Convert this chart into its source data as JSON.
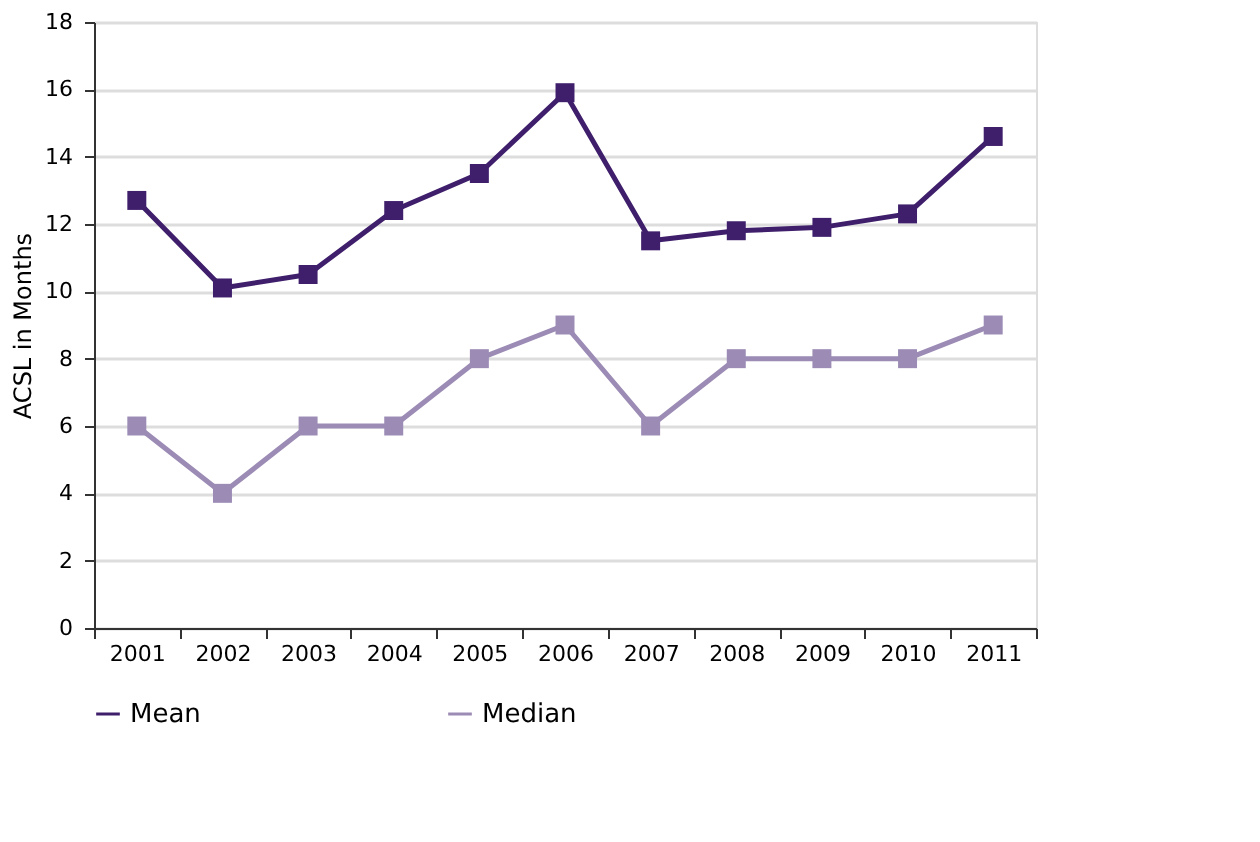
{
  "chart_data": {
    "type": "line",
    "ylabel": "ACSL in Months",
    "categories": [
      "2001",
      "2002",
      "2003",
      "2004",
      "2005",
      "2006",
      "2007",
      "2008",
      "2009",
      "2010",
      "2011"
    ],
    "series": [
      {
        "name": "Mean",
        "color": "#3f1f6b",
        "values": [
          12.7,
          10.1,
          10.5,
          12.4,
          13.5,
          15.9,
          11.5,
          11.8,
          11.9,
          12.3,
          14.6
        ]
      },
      {
        "name": "Median",
        "color": "#9b8bb5",
        "values": [
          6,
          4,
          6,
          6,
          8,
          9,
          6,
          8,
          8,
          8,
          9
        ]
      }
    ],
    "ylim": [
      0,
      18
    ],
    "yticks": [
      0,
      2,
      4,
      6,
      8,
      10,
      12,
      14,
      16,
      18
    ],
    "grid": "y",
    "legend": "bottom",
    "marker": "square",
    "line_style": "solid"
  }
}
